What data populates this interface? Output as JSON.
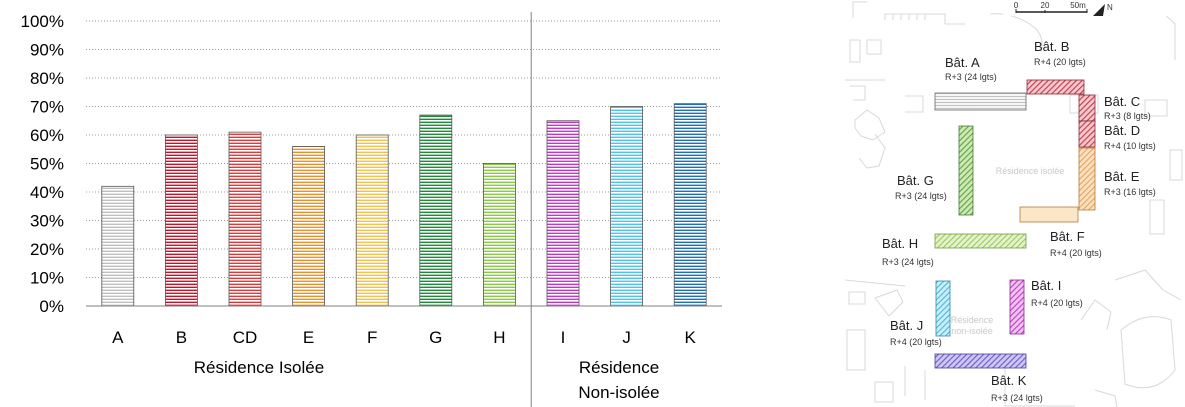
{
  "chart_data": {
    "type": "bar",
    "categories": [
      "A",
      "B",
      "CD",
      "E",
      "F",
      "G",
      "H",
      "I",
      "J",
      "K"
    ],
    "values": [
      42,
      60,
      61,
      56,
      60,
      67,
      50,
      65,
      70,
      71
    ],
    "colors": [
      "#bfbfbf",
      "#c0152b",
      "#e03a3a",
      "#e8922e",
      "#f2c14e",
      "#1f8a3a",
      "#8cc84b",
      "#c238c9",
      "#4fc3e8",
      "#1f6fb5"
    ],
    "ylim": [
      0,
      100
    ],
    "yticks": [
      "0%",
      "10%",
      "20%",
      "30%",
      "40%",
      "50%",
      "60%",
      "70%",
      "80%",
      "90%",
      "100%"
    ],
    "groups": [
      {
        "label": "Résidence Isolée",
        "categories": [
          "A",
          "B",
          "CD",
          "E",
          "F",
          "G",
          "H"
        ]
      },
      {
        "label_lines": [
          "Résidence",
          "Non-isolée"
        ],
        "categories": [
          "I",
          "J",
          "K"
        ]
      }
    ],
    "grid": true,
    "legend": "none"
  },
  "map": {
    "buildings": [
      {
        "name": "Bât. A",
        "info": "R+3 (24 lgts)"
      },
      {
        "name": "Bât. B",
        "info": "R+4 (20 lgts)"
      },
      {
        "name": "Bât. C",
        "info": "R+3 (8 lgts)"
      },
      {
        "name": "Bât. D",
        "info": "R+4 (10 lgts)"
      },
      {
        "name": "Bât. E",
        "info": "R+3 (16 lgts)"
      },
      {
        "name": "Bât. F",
        "info": "R+4 (20 lgts)"
      },
      {
        "name": "Bât. G",
        "info": "R+3 (24 lgts)"
      },
      {
        "name": "Bât. H",
        "info": "R+3 (24 lgts)"
      },
      {
        "name": "Bât. I",
        "info": "R+4 (20 lgts)"
      },
      {
        "name": "Bât. J",
        "info": "R+4 (20 lgts)"
      },
      {
        "name": "Bât. K",
        "info": "R+3 (24 lgts)"
      }
    ],
    "zone_isolee": "Résidence isolée",
    "zone_non_isolee_lines": [
      "Résidence",
      "non-isolée"
    ],
    "scale_labels": [
      "0",
      "20",
      "50m"
    ],
    "north": "N"
  }
}
